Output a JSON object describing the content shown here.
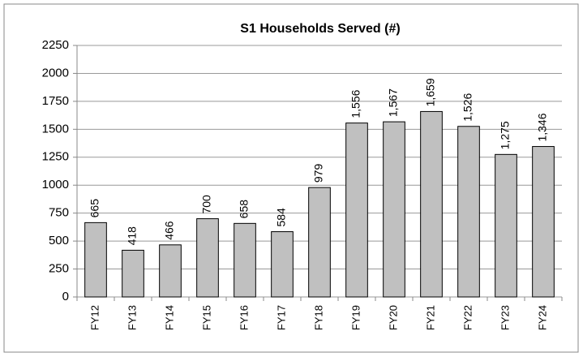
{
  "chart_data": {
    "type": "bar",
    "title": "S1 Households Served (#)",
    "categories": [
      "FY12",
      "FY13",
      "FY14",
      "FY15",
      "FY16",
      "FY17",
      "FY18",
      "FY19",
      "FY20",
      "FY21",
      "FY22",
      "FY23",
      "FY24"
    ],
    "values": [
      665,
      418,
      466,
      700,
      658,
      584,
      979,
      1556,
      1567,
      1659,
      1526,
      1275,
      1346
    ],
    "value_labels": [
      "665",
      "418",
      "466",
      "700",
      "658",
      "584",
      "979",
      "1,556",
      "1,567",
      "1,659",
      "1,526",
      "1,275",
      "1,346"
    ],
    "color": "#c0c0c0",
    "ylim": [
      0,
      2250
    ],
    "yticks": [
      0,
      250,
      500,
      750,
      1000,
      1250,
      1500,
      1750,
      2000,
      2250
    ],
    "grid": true
  }
}
